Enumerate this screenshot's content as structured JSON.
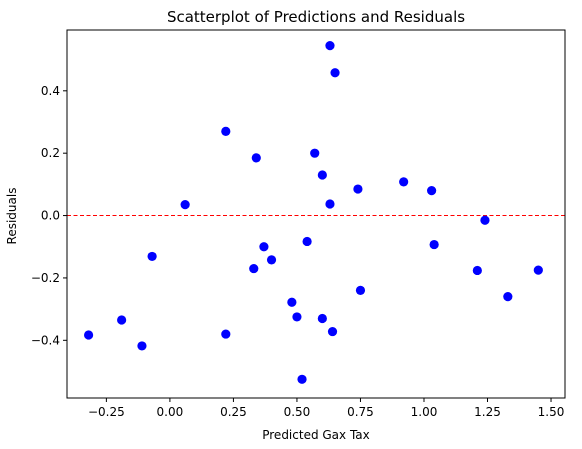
{
  "chart_data": {
    "type": "scatter",
    "title": "Scatterplot of Predictions and Residuals",
    "xlabel": "Predicted Gax Tax",
    "ylabel": "Residuals",
    "xlim": [
      -0.405,
      1.555
    ],
    "ylim": [
      -0.585,
      0.595
    ],
    "xticks": [
      -0.25,
      0.0,
      0.25,
      0.5,
      0.75,
      1.0,
      1.25,
      1.5
    ],
    "xtick_labels": [
      "−0.25",
      "0.00",
      "0.25",
      "0.50",
      "0.75",
      "1.00",
      "1.25",
      "1.50"
    ],
    "yticks": [
      -0.4,
      -0.2,
      0.0,
      0.2,
      0.4
    ],
    "ytick_labels": [
      "−0.4",
      "−0.2",
      "0.0",
      "0.2",
      "0.4"
    ],
    "grid": false,
    "legend": "none",
    "point_color": "#0000ff",
    "reference_line": {
      "y": 0,
      "color": "#ff0000",
      "style": "dashed"
    },
    "points": [
      {
        "x": -0.32,
        "y": -0.383
      },
      {
        "x": -0.19,
        "y": -0.335
      },
      {
        "x": -0.11,
        "y": -0.418
      },
      {
        "x": -0.07,
        "y": -0.131
      },
      {
        "x": 0.06,
        "y": 0.035
      },
      {
        "x": 0.22,
        "y": 0.27
      },
      {
        "x": 0.22,
        "y": -0.38
      },
      {
        "x": 0.33,
        "y": -0.17
      },
      {
        "x": 0.34,
        "y": 0.185
      },
      {
        "x": 0.37,
        "y": -0.1
      },
      {
        "x": 0.4,
        "y": -0.142
      },
      {
        "x": 0.48,
        "y": -0.278
      },
      {
        "x": 0.5,
        "y": -0.325
      },
      {
        "x": 0.52,
        "y": -0.525
      },
      {
        "x": 0.54,
        "y": -0.083
      },
      {
        "x": 0.57,
        "y": 0.2
      },
      {
        "x": 0.6,
        "y": 0.13
      },
      {
        "x": 0.6,
        "y": -0.33
      },
      {
        "x": 0.63,
        "y": 0.545
      },
      {
        "x": 0.63,
        "y": 0.037
      },
      {
        "x": 0.64,
        "y": -0.372
      },
      {
        "x": 0.65,
        "y": 0.458
      },
      {
        "x": 0.74,
        "y": 0.085
      },
      {
        "x": 0.75,
        "y": -0.24
      },
      {
        "x": 0.92,
        "y": 0.108
      },
      {
        "x": 1.03,
        "y": 0.08
      },
      {
        "x": 1.04,
        "y": -0.093
      },
      {
        "x": 1.21,
        "y": -0.176
      },
      {
        "x": 1.24,
        "y": -0.015
      },
      {
        "x": 1.33,
        "y": -0.26
      },
      {
        "x": 1.45,
        "y": -0.175
      }
    ]
  }
}
